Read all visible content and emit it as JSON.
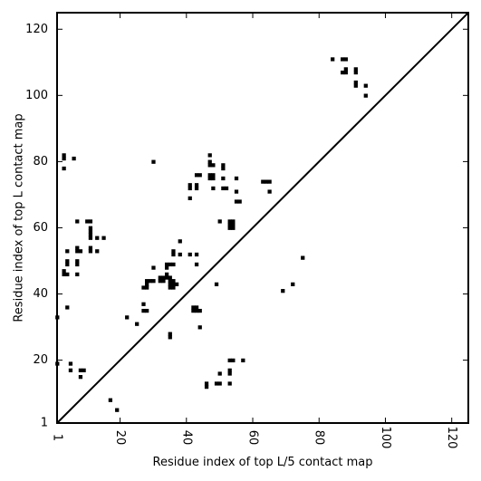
{
  "chart_data": {
    "type": "scatter",
    "xlabel": "Residue index of top L/5 contact map",
    "ylabel": "Residue index of top L contact map",
    "xlim": [
      1,
      125
    ],
    "ylim": [
      1,
      125
    ],
    "x_ticks": [
      {
        "value": 1,
        "label": "1"
      },
      {
        "value": 20,
        "label": "20"
      },
      {
        "value": 40,
        "label": "40"
      },
      {
        "value": 60,
        "label": "60"
      },
      {
        "value": 80,
        "label": "80"
      },
      {
        "value": 100,
        "label": "100"
      },
      {
        "value": 120,
        "label": "120"
      }
    ],
    "y_ticks": [
      {
        "value": 1,
        "label": "1"
      },
      {
        "value": 20,
        "label": "20"
      },
      {
        "value": 40,
        "label": "40"
      },
      {
        "value": 60,
        "label": "60"
      },
      {
        "value": 80,
        "label": "80"
      },
      {
        "value": 100,
        "label": "100"
      },
      {
        "value": 120,
        "label": "120"
      }
    ],
    "x_ticks_rotated": true,
    "diagonal": true,
    "grid": false,
    "marker": "filled square",
    "colors": {
      "points": "#000000",
      "axes": "#000000",
      "background": "#ffffff"
    },
    "series": [
      {
        "points": [
          [
            3,
            82
          ],
          [
            3,
            81
          ],
          [
            3,
            78
          ],
          [
            6,
            81
          ],
          [
            7,
            62
          ],
          [
            10,
            62
          ],
          [
            11,
            62
          ],
          [
            11,
            60
          ],
          [
            11,
            59
          ],
          [
            11,
            58
          ],
          [
            11,
            57
          ],
          [
            13,
            57
          ],
          [
            15,
            57
          ],
          [
            4,
            53
          ],
          [
            7,
            54
          ],
          [
            7,
            53
          ],
          [
            8,
            53
          ],
          [
            11,
            54
          ],
          [
            11,
            53
          ],
          [
            13,
            53
          ],
          [
            4,
            50
          ],
          [
            4,
            49
          ],
          [
            7,
            50
          ],
          [
            7,
            49
          ],
          [
            3,
            47
          ],
          [
            3,
            46
          ],
          [
            4,
            46
          ],
          [
            7,
            46
          ],
          [
            4,
            36
          ],
          [
            1,
            33
          ],
          [
            1,
            19
          ],
          [
            5,
            19
          ],
          [
            5,
            17
          ],
          [
            8,
            17
          ],
          [
            9,
            17
          ],
          [
            8,
            15
          ],
          [
            17,
            8
          ],
          [
            19,
            5
          ],
          [
            22,
            33
          ],
          [
            25,
            31
          ],
          [
            27,
            37
          ],
          [
            27,
            35
          ],
          [
            28,
            35
          ],
          [
            27,
            42
          ],
          [
            28,
            42
          ],
          [
            28,
            43
          ],
          [
            28,
            44
          ],
          [
            29,
            44
          ],
          [
            30,
            44
          ],
          [
            30,
            48
          ],
          [
            30,
            80
          ],
          [
            32,
            44
          ],
          [
            32,
            45
          ],
          [
            33,
            44
          ],
          [
            33,
            45
          ],
          [
            34,
            45
          ],
          [
            34,
            46
          ],
          [
            34,
            48
          ],
          [
            34,
            49
          ],
          [
            35,
            49
          ],
          [
            36,
            49
          ],
          [
            35,
            43
          ],
          [
            35,
            44
          ],
          [
            35,
            45
          ],
          [
            36,
            42
          ],
          [
            36,
            43
          ],
          [
            36,
            44
          ],
          [
            37,
            43
          ],
          [
            35,
            42
          ],
          [
            35,
            28
          ],
          [
            35,
            27
          ],
          [
            36,
            52
          ],
          [
            36,
            53
          ],
          [
            38,
            52
          ],
          [
            38,
            56
          ],
          [
            41,
            69
          ],
          [
            41,
            72
          ],
          [
            41,
            73
          ],
          [
            43,
            72
          ],
          [
            43,
            73
          ],
          [
            43,
            76
          ],
          [
            44,
            76
          ],
          [
            41,
            52
          ],
          [
            43,
            49
          ],
          [
            43,
            52
          ],
          [
            42,
            36
          ],
          [
            42,
            35
          ],
          [
            43,
            35
          ],
          [
            43,
            36
          ],
          [
            44,
            35
          ],
          [
            44,
            30
          ],
          [
            46,
            12
          ],
          [
            46,
            13
          ],
          [
            49,
            13
          ],
          [
            50,
            13
          ],
          [
            50,
            16
          ],
          [
            53,
            13
          ],
          [
            53,
            16
          ],
          [
            53,
            17
          ],
          [
            53,
            20
          ],
          [
            54,
            20
          ],
          [
            57,
            20
          ],
          [
            47,
            79
          ],
          [
            47,
            80
          ],
          [
            47,
            82
          ],
          [
            48,
            79
          ],
          [
            48,
            75
          ],
          [
            48,
            76
          ],
          [
            47,
            75
          ],
          [
            47,
            76
          ],
          [
            48,
            72
          ],
          [
            49,
            43
          ],
          [
            50,
            62
          ],
          [
            51,
            72
          ],
          [
            51,
            75
          ],
          [
            51,
            78
          ],
          [
            51,
            79
          ],
          [
            52,
            72
          ],
          [
            53,
            60
          ],
          [
            53,
            61
          ],
          [
            53,
            62
          ],
          [
            54,
            60
          ],
          [
            54,
            61
          ],
          [
            54,
            62
          ],
          [
            55,
            71
          ],
          [
            55,
            75
          ],
          [
            55,
            68
          ],
          [
            56,
            68
          ],
          [
            63,
            74
          ],
          [
            64,
            74
          ],
          [
            65,
            74
          ],
          [
            65,
            71
          ],
          [
            69,
            41
          ],
          [
            72,
            43
          ],
          [
            75,
            51
          ],
          [
            84,
            111
          ],
          [
            87,
            107
          ],
          [
            87,
            111
          ],
          [
            88,
            108
          ],
          [
            88,
            107
          ],
          [
            88,
            111
          ],
          [
            91,
            107
          ],
          [
            91,
            108
          ],
          [
            91,
            104
          ],
          [
            91,
            103
          ],
          [
            94,
            103
          ],
          [
            94,
            100
          ]
        ]
      }
    ]
  }
}
